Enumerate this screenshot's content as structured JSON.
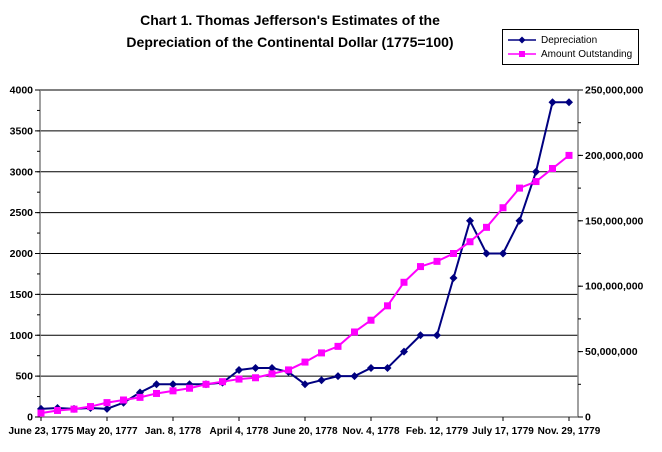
{
  "title": {
    "line1": "Chart 1. Thomas Jefferson's Estimates of the",
    "line2": "Depreciation of the Continental Dollar (1775=100)"
  },
  "legend": {
    "items": [
      {
        "label": "Depreciation",
        "color": "#000080",
        "marker": "diamond"
      },
      {
        "label": "Amount Outstanding",
        "color": "#FF00FF",
        "marker": "square"
      }
    ]
  },
  "chart_data": {
    "type": "line",
    "title": "Chart 1. Thomas Jefferson's Estimates of the Depreciation of the Continental Dollar (1775=100)",
    "x_point_count": 33,
    "x_ticklabels": [
      "June 23, 1775",
      "May 20, 1777",
      "Jan. 8, 1778",
      "April 4, 1778",
      "June 20, 1778",
      "Nov. 4, 1778",
      "Feb. 12, 1779",
      "July 17, 1779",
      "Nov. 29, 1779"
    ],
    "x_tick_indices": [
      0,
      4,
      8,
      12,
      16,
      20,
      24,
      28,
      32
    ],
    "left_axis": {
      "min": 0,
      "max": 4000,
      "major_unit": 500,
      "minor_unit": 250,
      "tick_labels": [
        "0",
        "500",
        "1000",
        "1500",
        "2000",
        "2500",
        "3000",
        "3500",
        "4000"
      ]
    },
    "right_axis": {
      "min": 0,
      "max": 250000000,
      "major_unit": 50000000,
      "minor_unit": 25000000,
      "tick_labels": [
        "0",
        "50,000,000",
        "100,000,000",
        "150,000,000",
        "200,000,000",
        "250,000,000"
      ]
    },
    "grid": {
      "horizontal": true,
      "color": "#000000"
    },
    "axis_line_color": "#808080",
    "series": [
      {
        "name": "Depreciation",
        "axis": "left",
        "color": "#000080",
        "marker": "diamond",
        "values": [
          100,
          110,
          100,
          110,
          100,
          175,
          300,
          400,
          400,
          400,
          400,
          420,
          575,
          600,
          600,
          550,
          400,
          450,
          500,
          500,
          600,
          600,
          800,
          1000,
          1000,
          1700,
          2400,
          2000,
          2000,
          2400,
          3000,
          3850,
          3850
        ]
      },
      {
        "name": "Amount Outstanding",
        "axis": "right",
        "color": "#FF00FF",
        "marker": "square",
        "values": [
          3000000,
          5000000,
          6000000,
          8000000,
          11000000,
          13000000,
          15000000,
          18000000,
          20000000,
          22000000,
          25000000,
          27000000,
          29000000,
          30000000,
          33000000,
          36000000,
          42000000,
          49000000,
          54000000,
          65000000,
          74000000,
          85000000,
          103000000,
          115000000,
          119000000,
          125000000,
          134000000,
          145000000,
          160000000,
          175000000,
          180000000,
          190000000,
          200000000
        ]
      }
    ]
  }
}
